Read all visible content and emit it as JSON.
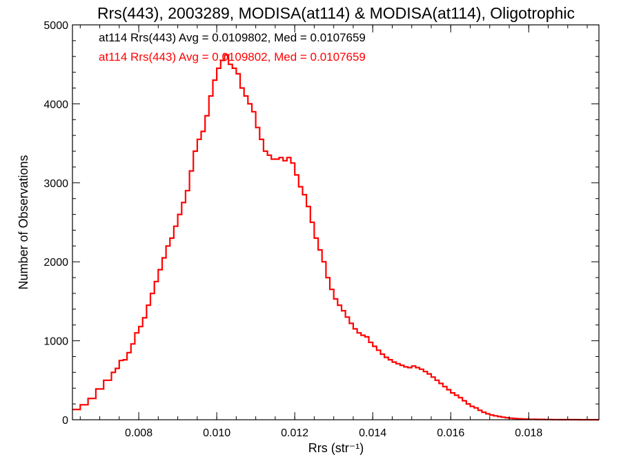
{
  "chart_data": {
    "type": "step",
    "title": "Rrs(443), 2003289, MODISA(at114) & MODISA(at114), Oligotrophic",
    "xlabel": "Rrs (str⁻¹)",
    "ylabel": "Number of Observations",
    "xlim": [
      0.0063,
      0.0198
    ],
    "ylim": [
      0,
      5000
    ],
    "x_ticks": [
      "0.008",
      "0.010",
      "0.012",
      "0.014",
      "0.016",
      "0.018"
    ],
    "y_ticks": [
      "0",
      "1000",
      "2000",
      "3000",
      "4000",
      "5000"
    ],
    "annotations": [
      {
        "text": "at114 Rrs(443) Avg = 0.0109802, Med = 0.0107659",
        "color": "#000000"
      },
      {
        "text": "at114 Rrs(443) Avg = 0.0109802, Med = 0.0107659",
        "color": "#ff0000"
      }
    ],
    "series": [
      {
        "color": "#ff0000",
        "points": [
          [
            0.0063,
            130
          ],
          [
            0.0065,
            190
          ],
          [
            0.0067,
            270
          ],
          [
            0.0069,
            390
          ],
          [
            0.0071,
            500
          ],
          [
            0.0073,
            600
          ],
          [
            0.0074,
            650
          ],
          [
            0.0075,
            750
          ],
          [
            0.0076,
            760
          ],
          [
            0.0077,
            850
          ],
          [
            0.0078,
            960
          ],
          [
            0.0079,
            1100
          ],
          [
            0.008,
            1180
          ],
          [
            0.0081,
            1290
          ],
          [
            0.0082,
            1450
          ],
          [
            0.0083,
            1600
          ],
          [
            0.0084,
            1750
          ],
          [
            0.0085,
            1900
          ],
          [
            0.0086,
            2050
          ],
          [
            0.0087,
            2200
          ],
          [
            0.0088,
            2300
          ],
          [
            0.0089,
            2450
          ],
          [
            0.009,
            2600
          ],
          [
            0.0091,
            2750
          ],
          [
            0.0092,
            2900
          ],
          [
            0.0093,
            3150
          ],
          [
            0.0094,
            3400
          ],
          [
            0.0095,
            3550
          ],
          [
            0.0096,
            3650
          ],
          [
            0.0097,
            3850
          ],
          [
            0.0098,
            4100
          ],
          [
            0.0099,
            4300
          ],
          [
            0.01,
            4450
          ],
          [
            0.0101,
            4550
          ],
          [
            0.0102,
            4620
          ],
          [
            0.0103,
            4500
          ],
          [
            0.0104,
            4450
          ],
          [
            0.0105,
            4380
          ],
          [
            0.0106,
            4200
          ],
          [
            0.0107,
            4100
          ],
          [
            0.0108,
            4000
          ],
          [
            0.0109,
            3900
          ],
          [
            0.011,
            3700
          ],
          [
            0.0111,
            3550
          ],
          [
            0.0112,
            3400
          ],
          [
            0.0113,
            3350
          ],
          [
            0.0114,
            3300
          ],
          [
            0.0115,
            3300
          ],
          [
            0.0116,
            3320
          ],
          [
            0.0117,
            3280
          ],
          [
            0.0118,
            3320
          ],
          [
            0.0119,
            3250
          ],
          [
            0.012,
            3100
          ],
          [
            0.0121,
            2950
          ],
          [
            0.0122,
            2850
          ],
          [
            0.0123,
            2700
          ],
          [
            0.0124,
            2500
          ],
          [
            0.0125,
            2300
          ],
          [
            0.0126,
            2150
          ],
          [
            0.0127,
            2000
          ],
          [
            0.0128,
            1800
          ],
          [
            0.0129,
            1650
          ],
          [
            0.013,
            1530
          ],
          [
            0.0131,
            1450
          ],
          [
            0.0132,
            1380
          ],
          [
            0.0133,
            1300
          ],
          [
            0.0134,
            1220
          ],
          [
            0.0135,
            1150
          ],
          [
            0.0136,
            1100
          ],
          [
            0.0137,
            1070
          ],
          [
            0.0138,
            1050
          ],
          [
            0.0139,
            980
          ],
          [
            0.014,
            930
          ],
          [
            0.0141,
            880
          ],
          [
            0.0142,
            830
          ],
          [
            0.0143,
            790
          ],
          [
            0.0144,
            760
          ],
          [
            0.0145,
            730
          ],
          [
            0.0146,
            710
          ],
          [
            0.0147,
            690
          ],
          [
            0.0148,
            670
          ],
          [
            0.0149,
            660
          ],
          [
            0.015,
            680
          ],
          [
            0.0151,
            660
          ],
          [
            0.0152,
            640
          ],
          [
            0.0153,
            610
          ],
          [
            0.0154,
            580
          ],
          [
            0.0155,
            540
          ],
          [
            0.0156,
            500
          ],
          [
            0.0157,
            460
          ],
          [
            0.0158,
            420
          ],
          [
            0.0159,
            380
          ],
          [
            0.016,
            340
          ],
          [
            0.0161,
            310
          ],
          [
            0.0162,
            280
          ],
          [
            0.0163,
            240
          ],
          [
            0.0164,
            200
          ],
          [
            0.0165,
            170
          ],
          [
            0.0166,
            150
          ],
          [
            0.0167,
            120
          ],
          [
            0.0168,
            95
          ],
          [
            0.0169,
            75
          ],
          [
            0.017,
            60
          ],
          [
            0.0171,
            50
          ],
          [
            0.0172,
            40
          ],
          [
            0.0173,
            32
          ],
          [
            0.0174,
            25
          ],
          [
            0.0175,
            20
          ],
          [
            0.0176,
            16
          ],
          [
            0.0177,
            12
          ],
          [
            0.0178,
            10
          ],
          [
            0.0179,
            8
          ],
          [
            0.018,
            6
          ],
          [
            0.0182,
            4
          ],
          [
            0.0184,
            3
          ],
          [
            0.0186,
            2
          ],
          [
            0.0188,
            1
          ],
          [
            0.019,
            1
          ],
          [
            0.0193,
            0
          ],
          [
            0.0198,
            0
          ]
        ]
      }
    ]
  }
}
